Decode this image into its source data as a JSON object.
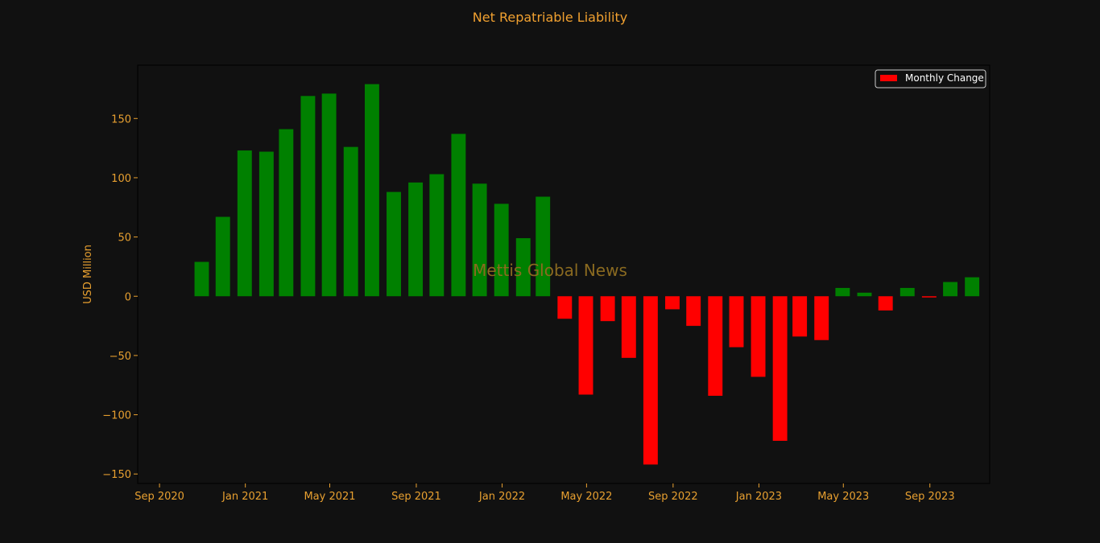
{
  "chart_data": {
    "type": "bar",
    "title": "Net Repatriable Liability",
    "ylabel": "USD Million",
    "xlabel": "",
    "watermark": "Mettis Global News",
    "legend": {
      "label": "Monthly Change",
      "placement": "top-right"
    },
    "ylim": [
      -158,
      195
    ],
    "xlim": [
      "2020-08-01",
      "2023-11-25"
    ],
    "yticks": [
      -150,
      -100,
      -50,
      0,
      50,
      100,
      150
    ],
    "xticks": [
      {
        "date": "2020-09-01",
        "label": "Sep 2020"
      },
      {
        "date": "2021-01-01",
        "label": "Jan 2021"
      },
      {
        "date": "2021-05-01",
        "label": "May 2021"
      },
      {
        "date": "2021-09-01",
        "label": "Sep 2021"
      },
      {
        "date": "2022-01-01",
        "label": "Jan 2022"
      },
      {
        "date": "2022-05-01",
        "label": "May 2022"
      },
      {
        "date": "2022-09-01",
        "label": "Sep 2022"
      },
      {
        "date": "2023-01-01",
        "label": "Jan 2023"
      },
      {
        "date": "2023-05-01",
        "label": "May 2023"
      },
      {
        "date": "2023-09-01",
        "label": "Sep 2023"
      }
    ],
    "colors": {
      "positive": "#008000",
      "negative": "#ff0000",
      "background": "#111111",
      "text": "#e8a030"
    },
    "x": [
      "2020-10-31",
      "2020-11-30",
      "2020-12-31",
      "2021-01-31",
      "2021-02-28",
      "2021-03-31",
      "2021-04-30",
      "2021-05-31",
      "2021-06-30",
      "2021-07-31",
      "2021-08-31",
      "2021-09-30",
      "2021-10-31",
      "2021-11-30",
      "2021-12-31",
      "2022-01-31",
      "2022-02-28",
      "2022-03-31",
      "2022-04-30",
      "2022-05-31",
      "2022-06-30",
      "2022-07-31",
      "2022-08-31",
      "2022-09-30",
      "2022-10-31",
      "2022-11-30",
      "2022-12-31",
      "2023-01-31",
      "2023-02-28",
      "2023-03-31",
      "2023-04-30",
      "2023-05-31",
      "2023-06-30",
      "2023-07-31",
      "2023-08-31",
      "2023-09-30",
      "2023-10-31"
    ],
    "values": [
      29,
      67,
      123,
      122,
      141,
      169,
      171,
      126,
      179,
      88,
      96,
      103,
      137,
      95,
      78,
      49,
      84,
      -19,
      -83,
      -21,
      -52,
      -142,
      -11,
      -25,
      -84,
      -43,
      -68,
      -122,
      -34,
      -37,
      7,
      3,
      -12,
      7,
      -1,
      12,
      16
    ]
  }
}
